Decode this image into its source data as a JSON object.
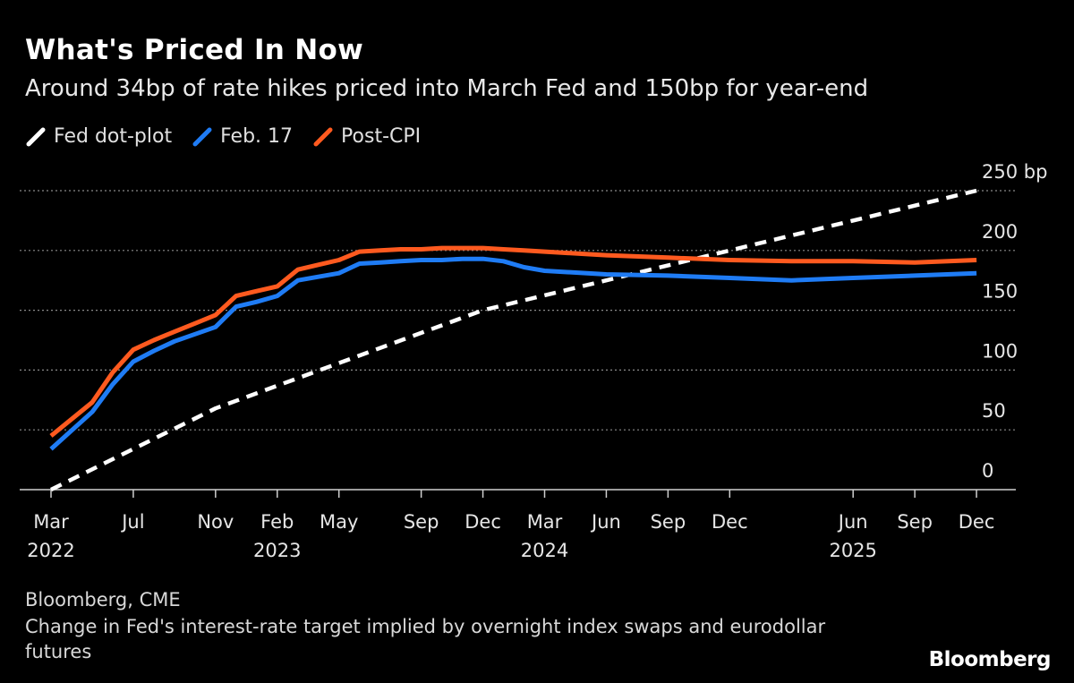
{
  "header": {
    "title": "What's Priced In Now",
    "subtitle": "Around 34bp of rate hikes priced into March Fed and 150bp for year-end"
  },
  "legend": [
    {
      "label": "Fed dot-plot",
      "color": "#ffffff"
    },
    {
      "label": "Feb. 17",
      "color": "#1f7cf5"
    },
    {
      "label": "Post-CPI",
      "color": "#ff5a1f"
    }
  ],
  "footer": {
    "source": "Bloomberg, CME",
    "note": "Change in Fed's interest-rate target implied by overnight index swaps and eurodollar futures",
    "logo": "Bloomberg"
  },
  "chart_data": {
    "type": "line",
    "xlabel": "",
    "ylabel": "",
    "x_tick_labels": [
      {
        "month": "2022-03",
        "label": "Mar",
        "year": "2022"
      },
      {
        "month": "2022-07",
        "label": "Jul",
        "year": ""
      },
      {
        "month": "2022-11",
        "label": "Nov",
        "year": ""
      },
      {
        "month": "2023-02",
        "label": "Feb",
        "year": "2023"
      },
      {
        "month": "2023-05",
        "label": "May",
        "year": ""
      },
      {
        "month": "2023-09",
        "label": "Sep",
        "year": ""
      },
      {
        "month": "2023-12",
        "label": "Dec",
        "year": ""
      },
      {
        "month": "2024-03",
        "label": "Mar",
        "year": "2024"
      },
      {
        "month": "2024-06",
        "label": "Jun",
        "year": ""
      },
      {
        "month": "2024-09",
        "label": "Sep",
        "year": ""
      },
      {
        "month": "2024-12",
        "label": "Dec",
        "year": ""
      },
      {
        "month": "2025-06",
        "label": "Jun",
        "year": "2025"
      },
      {
        "month": "2025-09",
        "label": "Sep",
        "year": ""
      },
      {
        "month": "2025-12",
        "label": "Dec",
        "year": ""
      }
    ],
    "x_range": [
      "2022-03",
      "2026-03"
    ],
    "ylim": [
      0,
      250
    ],
    "y_ticks": [
      0,
      50,
      100,
      150,
      200,
      250
    ],
    "y_tick_labels": [
      "0",
      "50",
      "100",
      "150",
      "200",
      "250 bp"
    ],
    "grid": true,
    "legend_position": "top-left",
    "series": [
      {
        "name": "Fed dot-plot",
        "color": "#ffffff",
        "style": "dashed",
        "x": [
          "2022-03",
          "2022-11",
          "2023-12",
          "2024-12",
          "2025-12"
        ],
        "y": [
          0,
          68,
          150,
          200,
          250
        ]
      },
      {
        "name": "Feb. 17",
        "color": "#1f7cf5",
        "style": "solid",
        "x": [
          "2022-03",
          "2022-05",
          "2022-06",
          "2022-07",
          "2022-08",
          "2022-09",
          "2022-10",
          "2022-11",
          "2022-12",
          "2023-01",
          "2023-02",
          "2023-03",
          "2023-04",
          "2023-05",
          "2023-06",
          "2023-07",
          "2023-08",
          "2023-09",
          "2023-10",
          "2023-11",
          "2023-12",
          "2024-01",
          "2024-02",
          "2024-03",
          "2024-06",
          "2024-09",
          "2024-12",
          "2025-03",
          "2025-06",
          "2025-09",
          "2025-12"
        ],
        "y": [
          34,
          65,
          88,
          107,
          116,
          124,
          130,
          136,
          153,
          157,
          162,
          175,
          178,
          181,
          189,
          190,
          191,
          192,
          192,
          193,
          193,
          191,
          186,
          183,
          180,
          179,
          177,
          175,
          177,
          179,
          181
        ]
      },
      {
        "name": "Post-CPI",
        "color": "#ff5a1f",
        "style": "solid",
        "x": [
          "2022-03",
          "2022-05",
          "2022-06",
          "2022-07",
          "2022-08",
          "2022-09",
          "2022-10",
          "2022-11",
          "2022-12",
          "2023-01",
          "2023-02",
          "2023-03",
          "2023-04",
          "2023-05",
          "2023-06",
          "2023-07",
          "2023-08",
          "2023-09",
          "2023-10",
          "2023-11",
          "2023-12",
          "2024-01",
          "2024-02",
          "2024-03",
          "2024-06",
          "2024-09",
          "2024-12",
          "2025-03",
          "2025-06",
          "2025-09",
          "2025-12"
        ],
        "y": [
          45,
          73,
          98,
          117,
          125,
          132,
          139,
          146,
          162,
          166,
          170,
          184,
          188,
          192,
          199,
          200,
          201,
          201,
          202,
          202,
          202,
          201,
          200,
          199,
          196,
          194,
          192,
          191,
          191,
          190,
          192
        ]
      }
    ]
  }
}
